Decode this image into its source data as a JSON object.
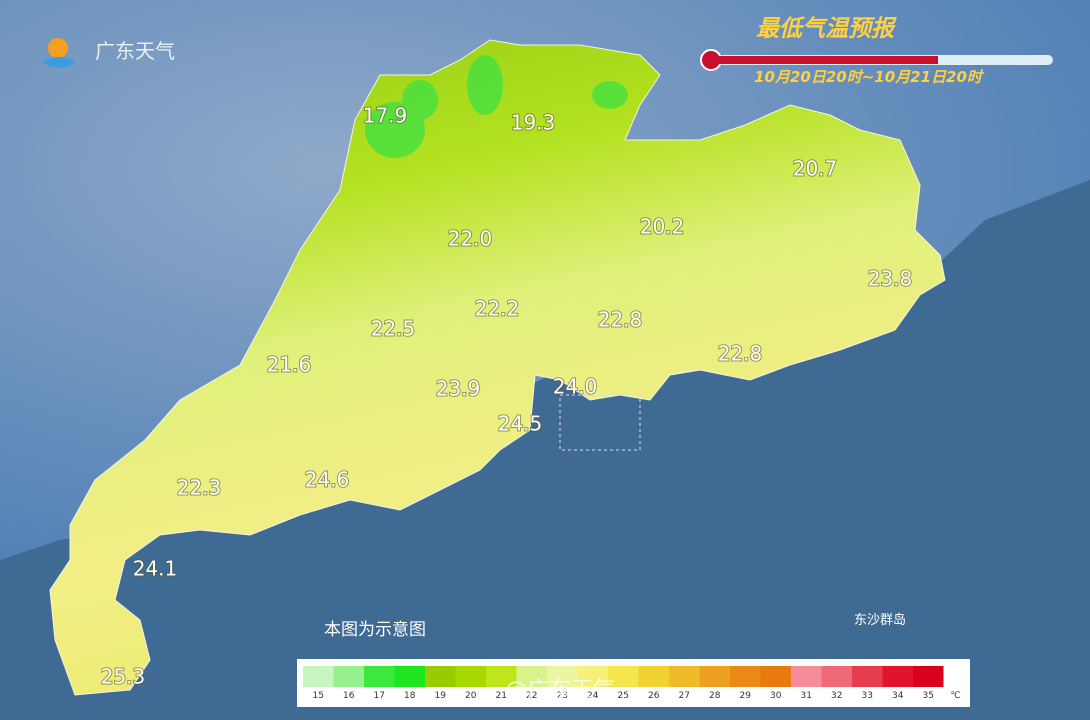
{
  "header": {
    "logo": "广东天气",
    "title": "最低气温预报",
    "period": "10月20日20时~10月21日20时"
  },
  "labels": [
    "17.9",
    "19.3",
    "20.7",
    "22.0",
    "20.2",
    "23.8",
    "22.2",
    "22.5",
    "22.8",
    "22.8",
    "21.6",
    "23.9",
    "24.0",
    "24.5",
    "22.3",
    "24.6",
    "24.1",
    "25.3"
  ],
  "island": "东沙群岛",
  "note": "本图为示意图",
  "legend": {
    "ticks": [
      15,
      16,
      17,
      18,
      19,
      20,
      21,
      22,
      23,
      24,
      25,
      26,
      27,
      28,
      29,
      30,
      31,
      32,
      33,
      34,
      35
    ],
    "colors": [
      "#c8f5c0",
      "#96f08c",
      "#3ce83c",
      "#1ee61e",
      "#99cc00",
      "#a8d800",
      "#bfe61a",
      "#d8f28c",
      "#eef5a0",
      "#f5f078",
      "#f5e650",
      "#f2d230",
      "#f0bb28",
      "#eea020",
      "#ea8a14",
      "#e87a10",
      "#f58c9a",
      "#f06a7a",
      "#e83c50",
      "#e0142a",
      "#d8001a"
    ],
    "unit": "℃"
  },
  "watermark": "@广东天气"
}
